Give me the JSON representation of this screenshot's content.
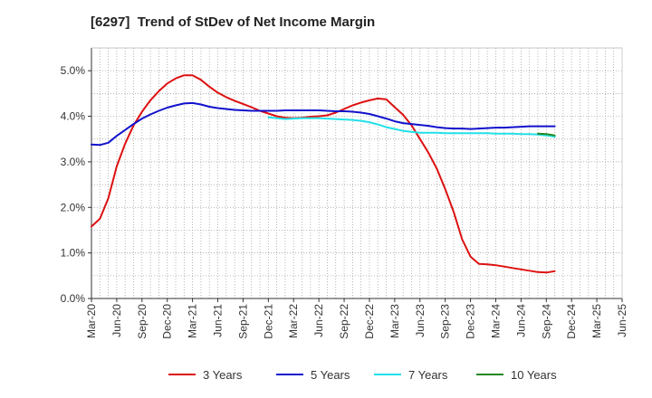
{
  "chart_data": {
    "type": "line",
    "title": "[6297]  Trend of StDev of Net Income Margin",
    "xlabel": "",
    "ylabel": "",
    "ylim": [
      0,
      5.5
    ],
    "y_ticks": [
      "0.0%",
      "1.0%",
      "2.0%",
      "3.0%",
      "4.0%",
      "5.0%"
    ],
    "y_tick_values": [
      0,
      1,
      2,
      3,
      4,
      5
    ],
    "x_ticks": [
      "Mar-20",
      "Jun-20",
      "Sep-20",
      "Dec-20",
      "Mar-21",
      "Jun-21",
      "Sep-21",
      "Dec-21",
      "Mar-22",
      "Jun-22",
      "Sep-22",
      "Dec-22",
      "Mar-23",
      "Jun-23",
      "Sep-23",
      "Dec-23",
      "Mar-24",
      "Jun-24",
      "Sep-24",
      "Dec-24",
      "Mar-25",
      "Jun-25"
    ],
    "grid": true,
    "legend_position": "bottom",
    "series": [
      {
        "name": "3 Years",
        "color": "#dd1111",
        "values": [
          1.58,
          1.75,
          2.2,
          2.9,
          3.4,
          3.8,
          4.1,
          4.35,
          4.55,
          4.72,
          4.83,
          4.9,
          4.9,
          4.8,
          4.65,
          4.52,
          4.42,
          4.34,
          4.27,
          4.2,
          4.12,
          4.06,
          4.0,
          3.97,
          3.96,
          3.97,
          3.99,
          4.0,
          4.02,
          4.08,
          4.16,
          4.24,
          4.3,
          4.35,
          4.39,
          4.37,
          4.2,
          4.03,
          3.8,
          3.5,
          3.2,
          2.85,
          2.4,
          1.9,
          1.3,
          0.92,
          0.76,
          0.75,
          0.73,
          0.7,
          0.67,
          0.64,
          0.61,
          0.58,
          0.57,
          0.6
        ]
      },
      {
        "name": "5 Years",
        "color": "#1111cc",
        "start_index": 0,
        "values": [
          3.38,
          3.37,
          3.42,
          3.57,
          3.7,
          3.83,
          3.95,
          4.04,
          4.12,
          4.19,
          4.24,
          4.28,
          4.29,
          4.26,
          4.21,
          4.18,
          4.16,
          4.14,
          4.13,
          4.12,
          4.12,
          4.12,
          4.12,
          4.13,
          4.13,
          4.13,
          4.13,
          4.13,
          4.12,
          4.11,
          4.11,
          4.1,
          4.08,
          4.05,
          4.0,
          3.95,
          3.89,
          3.85,
          3.83,
          3.81,
          3.79,
          3.76,
          3.74,
          3.73,
          3.73,
          3.72,
          3.73,
          3.74,
          3.75,
          3.75,
          3.76,
          3.77,
          3.78,
          3.78,
          3.78,
          3.78
        ]
      },
      {
        "name": "7 Years",
        "color": "#22e0e8",
        "start_index": 21,
        "values": [
          3.98,
          3.96,
          3.94,
          3.95,
          3.96,
          3.96,
          3.96,
          3.95,
          3.94,
          3.93,
          3.92,
          3.9,
          3.87,
          3.82,
          3.76,
          3.72,
          3.68,
          3.66,
          3.64,
          3.64,
          3.64,
          3.63,
          3.63,
          3.63,
          3.63,
          3.63,
          3.63,
          3.62,
          3.62,
          3.62,
          3.61,
          3.61,
          3.6,
          3.58,
          3.55
        ]
      },
      {
        "name": "10 Years",
        "color": "#228822",
        "start_index": 53,
        "values": [
          3.62,
          3.61,
          3.58
        ]
      }
    ]
  }
}
